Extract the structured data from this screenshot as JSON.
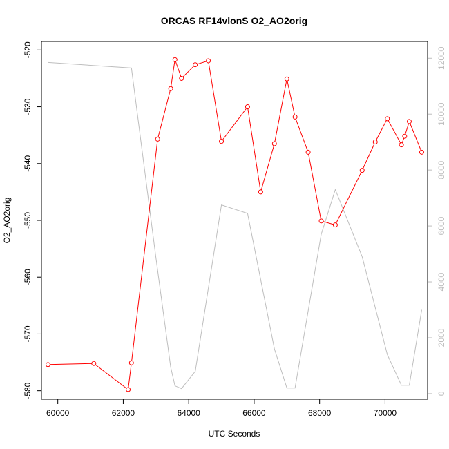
{
  "chart_data": {
    "type": "line",
    "title": "ORCAS RF14vlonS O2_AO2orig",
    "xlabel": "UTC Seconds",
    "ylabel": "O2_AO2orig",
    "xlim": [
      59500,
      71300
    ],
    "ylim": [
      -581.5,
      -518.5
    ],
    "y2lim": [
      -200,
      12600
    ],
    "x_ticks": [
      60000,
      62000,
      64000,
      66000,
      68000,
      70000
    ],
    "y_ticks": [
      -520,
      -530,
      -540,
      -550,
      -560,
      -570,
      -580
    ],
    "y2_ticks": [
      0,
      2000,
      4000,
      6000,
      8000,
      10000,
      12000
    ],
    "grid": false,
    "series": [
      {
        "axis": "left",
        "color": "#ff0000",
        "markers": "open-circle",
        "points": [
          [
            59700,
            -575.4
          ],
          [
            61100,
            -575.2
          ],
          [
            62150,
            -579.8
          ],
          [
            62250,
            -575.1
          ],
          [
            63050,
            -535.7
          ],
          [
            63450,
            -526.8
          ],
          [
            63580,
            -521.7
          ],
          [
            63780,
            -525.0
          ],
          [
            64200,
            -522.6
          ],
          [
            64600,
            -521.9
          ],
          [
            65000,
            -536.1
          ],
          [
            65800,
            -530.0
          ],
          [
            66200,
            -545.0
          ],
          [
            66620,
            -536.5
          ],
          [
            67000,
            -525.1
          ],
          [
            67250,
            -531.8
          ],
          [
            67650,
            -538.0
          ],
          [
            68050,
            -550.1
          ],
          [
            68480,
            -550.8
          ],
          [
            69300,
            -541.2
          ],
          [
            69700,
            -536.2
          ],
          [
            70070,
            -532.1
          ],
          [
            70500,
            -536.7
          ],
          [
            70600,
            -535.2
          ],
          [
            70740,
            -532.6
          ],
          [
            71120,
            -538.0
          ]
        ]
      },
      {
        "axis": "right",
        "color": "#bebebe",
        "markers": "none",
        "points": [
          [
            59700,
            11850
          ],
          [
            62250,
            11650
          ],
          [
            63000,
            4850
          ],
          [
            63450,
            950
          ],
          [
            63580,
            280
          ],
          [
            63780,
            180
          ],
          [
            64200,
            800
          ],
          [
            65000,
            6750
          ],
          [
            65800,
            6450
          ],
          [
            66620,
            1600
          ],
          [
            67000,
            200
          ],
          [
            67250,
            200
          ],
          [
            68050,
            5700
          ],
          [
            68480,
            7300
          ],
          [
            69300,
            4900
          ],
          [
            70070,
            1400
          ],
          [
            70500,
            300
          ],
          [
            70740,
            300
          ],
          [
            71120,
            3000
          ]
        ]
      }
    ]
  }
}
